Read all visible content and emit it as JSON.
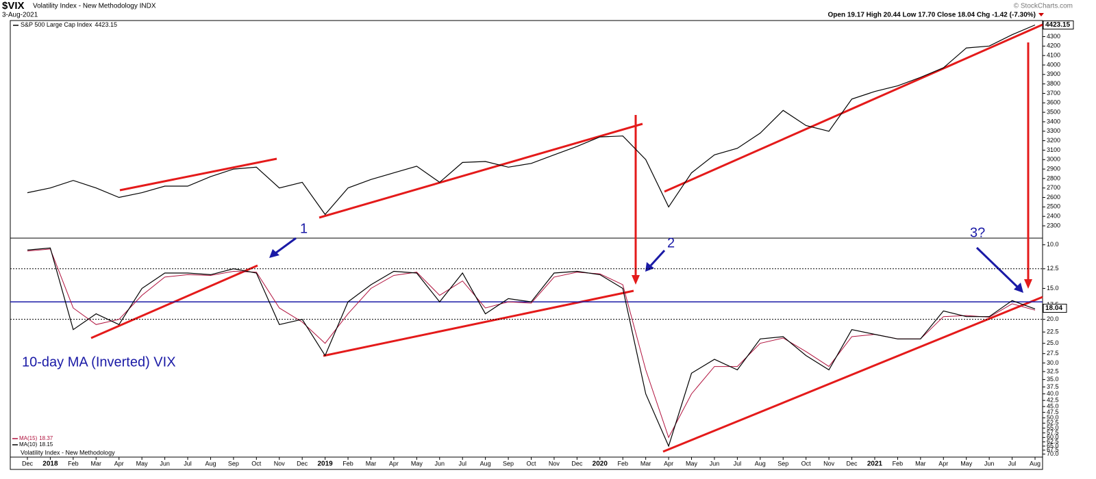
{
  "header": {
    "title": "$VIX",
    "subtitle": "Volatility Index - New Methodology INDX",
    "date": "3-Aug-2021",
    "quote": "Open 19.17 High 20.44 Low 17.70 Close 18.04 Chg -1.42 (-7.30%)",
    "credit": "© StockCharts.com"
  },
  "annotations": {
    "label1": "1",
    "label2": "2",
    "label3": "3?",
    "panel_note": "10-day MA (Inverted) VIX"
  },
  "chart_data": [
    {
      "type": "line",
      "series": [
        {
          "name": "S&P 500 Large Cap Index",
          "color": "#000000",
          "values": [
            2650,
            2700,
            2780,
            2700,
            2600,
            2650,
            2720,
            2720,
            2820,
            2900,
            2920,
            2700,
            2760,
            2420,
            2700,
            2790,
            2860,
            2930,
            2760,
            2970,
            2980,
            2920,
            2960,
            3050,
            3140,
            3240,
            3250,
            3000,
            2500,
            2860,
            3050,
            3120,
            3280,
            3520,
            3360,
            3300,
            3640,
            3720,
            3780,
            3870,
            3970,
            4180,
            4200,
            4320,
            4423.15
          ]
        }
      ],
      "ylim": [
        2170,
        4470
      ],
      "yticks": [
        2300,
        2400,
        2500,
        2600,
        2700,
        2800,
        2900,
        3000,
        3100,
        3200,
        3300,
        3400,
        3500,
        3600,
        3700,
        3800,
        3900,
        4000,
        4100,
        4200,
        4300
      ]
    },
    {
      "type": "line",
      "log_scale": true,
      "inverted": true,
      "categories": [
        "Dec",
        "2018",
        "Feb",
        "Mar",
        "Apr",
        "May",
        "Jun",
        "Jul",
        "Aug",
        "Sep",
        "Oct",
        "Nov",
        "Dec",
        "2019",
        "Feb",
        "Mar",
        "Apr",
        "May",
        "Jun",
        "Jul",
        "Aug",
        "Sep",
        "Oct",
        "Nov",
        "Dec",
        "2020",
        "Feb",
        "Mar",
        "Apr",
        "May",
        "Jun",
        "Jul",
        "Aug",
        "Sep",
        "Oct",
        "Nov",
        "Dec",
        "2021",
        "Feb",
        "Mar",
        "Apr",
        "May",
        "Jun",
        "Jul",
        "Aug"
      ],
      "series": [
        {
          "name": "MA(15)",
          "color": "#b0103c",
          "values": [
            10.6,
            10.4,
            18,
            21,
            20,
            16,
            13.5,
            13.2,
            13.3,
            12.8,
            12.9,
            18,
            20.5,
            25,
            19,
            15,
            13.3,
            12.9,
            16,
            14,
            18,
            17,
            17.2,
            13.5,
            12.9,
            13.1,
            14.5,
            32,
            60,
            40,
            31,
            31,
            25,
            23.8,
            27,
            31,
            23.5,
            23,
            24,
            24,
            19.5,
            19.3,
            19.6,
            17.3,
            18.37
          ]
        },
        {
          "name": "MA(10)",
          "color": "#000000",
          "values": [
            10.5,
            10.3,
            22,
            19,
            21,
            15,
            13,
            13,
            13.2,
            12.5,
            13,
            21,
            20,
            28,
            17,
            14.5,
            12.8,
            13,
            17,
            13,
            19,
            16.5,
            17,
            13,
            12.8,
            13.2,
            15,
            40,
            65,
            33,
            29,
            32,
            24,
            23.5,
            28,
            32,
            22,
            23,
            24,
            24,
            18.5,
            19.5,
            19.5,
            16.8,
            18.15
          ]
        }
      ],
      "legend_note": "Volatility Index - New Methodology",
      "last_value": 18.04,
      "reference_line": {
        "value": 17,
        "color": "#1a1aa6"
      },
      "dotted_levels": [
        12.5,
        20
      ],
      "ylim": [
        9.4,
        72
      ],
      "yticks": [
        {
          "value": 10,
          "label": "10.0"
        },
        {
          "value": 12.5,
          "label": "12.5"
        },
        {
          "value": 15,
          "label": "15.0"
        },
        {
          "value": 17.5,
          "label": "17.5"
        },
        {
          "value": 20,
          "label": "20.0"
        },
        {
          "value": 22.5,
          "label": "22.5"
        },
        {
          "value": 25,
          "label": "25.0"
        },
        {
          "value": 27.5,
          "label": "27.5"
        },
        {
          "value": 30,
          "label": "30.0"
        },
        {
          "value": 32.5,
          "label": "32.5"
        },
        {
          "value": 35,
          "label": "35.0"
        },
        {
          "value": 37.5,
          "label": "37.5"
        },
        {
          "value": 40,
          "label": "40.0"
        },
        {
          "value": 42.5,
          "label": "42.5"
        },
        {
          "value": 45,
          "label": "45.0"
        },
        {
          "value": 47.5,
          "label": "47.5"
        },
        {
          "value": 50,
          "label": "50.0"
        },
        {
          "value": 52.5,
          "label": "52.5"
        },
        {
          "value": 55,
          "label": "55.0"
        },
        {
          "value": 57.5,
          "label": "57.5"
        },
        {
          "value": 60,
          "label": "60.0"
        },
        {
          "value": 62.5,
          "label": "62.5"
        },
        {
          "value": 65,
          "label": "65.0"
        },
        {
          "value": 67.5,
          "label": "67.5"
        },
        {
          "value": 70,
          "label": "70.0"
        }
      ]
    }
  ]
}
